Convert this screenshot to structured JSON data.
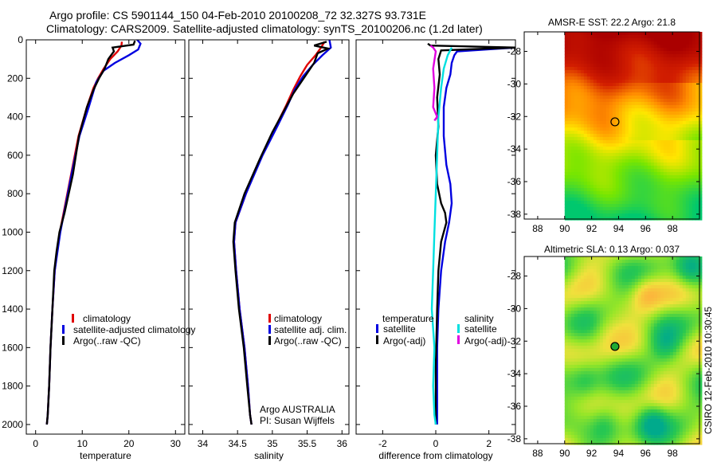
{
  "title": {
    "line1": "Argo profile: CS 5901144_150 04-Feb-2010 20100208_72 32.327S 93.731E",
    "line2": "Climatology: CARS2009. Satellite-adjusted climatology: synTS_20100206.nc (1.2d later)"
  },
  "credit": "CSIRO 12-Feb-2010 10:30:45",
  "chart_data": [
    {
      "id": "temperature",
      "type": "line",
      "xlabel": "temperature",
      "ylabel": "",
      "xlim": [
        -2,
        32
      ],
      "ylim": [
        2050,
        0
      ],
      "xticks": [
        0,
        10,
        20,
        30
      ],
      "yticks": [
        0,
        200,
        400,
        600,
        800,
        1000,
        1200,
        1400,
        1600,
        1800,
        2000
      ],
      "legend": [
        "climatology",
        "satellite-adjusted climatology",
        "Argo(..raw -QC)"
      ],
      "series": [
        {
          "name": "climatology",
          "color": "#e00000",
          "x": [
            18.5,
            18.4,
            17.6,
            16.0,
            14.6,
            13.4,
            12.4,
            11.0,
            9.2,
            7.6,
            6.0,
            5.2,
            4.6,
            4.1,
            3.6,
            3.2,
            2.9,
            2.6,
            2.4
          ],
          "y": [
            10,
            30,
            60,
            100,
            150,
            200,
            250,
            350,
            500,
            700,
            900,
            1000,
            1100,
            1200,
            1400,
            1600,
            1800,
            1950,
            2000
          ]
        },
        {
          "name": "satellite-adjusted climatology",
          "color": "#0000e0",
          "x": [
            21.8,
            22.5,
            22.0,
            20.0,
            17.0,
            14.6,
            13.0,
            11.4,
            9.4,
            7.7,
            6.1,
            5.3,
            4.7,
            4.1,
            3.6,
            3.2,
            2.9,
            2.6,
            2.4
          ],
          "y": [
            0,
            20,
            50,
            80,
            120,
            160,
            220,
            350,
            500,
            700,
            900,
            1000,
            1100,
            1200,
            1400,
            1600,
            1800,
            1950,
            2000
          ]
        },
        {
          "name": "Argo(..raw -QC)",
          "color": "#000000",
          "x": [
            21.3,
            21.0,
            16.5,
            16.8,
            15.6,
            14.8,
            13.6,
            12.4,
            11.0,
            9.3,
            8.0,
            6.2,
            5.1,
            4.5,
            4.0,
            3.6,
            3.2,
            2.9,
            2.6,
            2.4
          ],
          "y": [
            5,
            25,
            40,
            60,
            100,
            150,
            200,
            260,
            350,
            500,
            700,
            900,
            1000,
            1100,
            1200,
            1400,
            1600,
            1800,
            1950,
            2000
          ]
        }
      ]
    },
    {
      "id": "salinity",
      "type": "line",
      "xlabel": "salinity",
      "ylabel": "",
      "xlim": [
        33.8,
        36.1
      ],
      "ylim": [
        2050,
        0
      ],
      "xticks": [
        34,
        34.5,
        35,
        35.5,
        36
      ],
      "yticks": [
        0,
        200,
        400,
        600,
        800,
        1000,
        1200,
        1400,
        1600,
        1800,
        2000
      ],
      "legend": [
        "climatology",
        "satellite adj. clim.",
        "Argo(..raw -QC)"
      ],
      "series": [
        {
          "name": "climatology",
          "color": "#e00000",
          "x": [
            35.75,
            35.7,
            35.62,
            35.5,
            35.4,
            35.3,
            35.2,
            35.05,
            34.85,
            34.62,
            34.47,
            34.45,
            34.48,
            34.53,
            34.6,
            34.65,
            34.68,
            34.7
          ],
          "y": [
            10,
            40,
            80,
            130,
            190,
            260,
            340,
            450,
            600,
            800,
            950,
            1050,
            1200,
            1400,
            1600,
            1800,
            1950,
            2000
          ]
        },
        {
          "name": "satellite adj. clim.",
          "color": "#0000e0",
          "x": [
            35.82,
            35.84,
            35.72,
            35.58,
            35.44,
            35.32,
            35.22,
            35.07,
            34.86,
            34.62,
            34.47,
            34.45,
            34.48,
            34.53,
            34.6,
            34.65,
            34.68,
            34.7
          ],
          "y": [
            0,
            40,
            80,
            130,
            190,
            260,
            340,
            450,
            600,
            800,
            950,
            1050,
            1200,
            1400,
            1600,
            1800,
            1950,
            2000
          ]
        },
        {
          "name": "Argo(..raw -QC)",
          "color": "#000000",
          "x": [
            35.78,
            35.6,
            35.8,
            35.65,
            35.6,
            35.45,
            35.3,
            35.15,
            35.0,
            34.82,
            34.6,
            34.46,
            34.44,
            34.47,
            34.52,
            34.59,
            34.64,
            34.68,
            34.7
          ],
          "y": [
            10,
            30,
            45,
            70,
            120,
            200,
            280,
            380,
            480,
            620,
            800,
            950,
            1050,
            1200,
            1400,
            1600,
            1800,
            1950,
            2000
          ]
        }
      ]
    },
    {
      "id": "difference",
      "type": "line",
      "xlabel": "difference from climatology",
      "ylabel": "",
      "xlim": [
        -3,
        3
      ],
      "ylim": [
        2050,
        0
      ],
      "xticks": [
        -2,
        0,
        2
      ],
      "yticks": [
        0,
        200,
        400,
        600,
        800,
        1000,
        1200,
        1400,
        1600,
        1800,
        2000
      ],
      "legend_headers": [
        "temperature",
        "salinity"
      ],
      "legend": [
        "satellite",
        "Argo(-adj)",
        "satellite",
        "Argo(-adj)"
      ],
      "series": [
        {
          "name": "temperature satellite",
          "color": "#0000e0",
          "x": [
            3.0,
            0.8,
            0.7,
            0.6,
            0.55,
            0.4,
            0.3,
            0.3,
            0.4,
            0.55,
            0.6,
            0.5,
            0.35,
            0.2,
            0.1,
            0.05,
            0.05,
            0.05
          ],
          "y": [
            40,
            60,
            80,
            120,
            180,
            250,
            350,
            500,
            650,
            750,
            850,
            950,
            1050,
            1200,
            1400,
            1600,
            1800,
            2000
          ]
        },
        {
          "name": "temperature Argo(-adj)",
          "color": "#000000",
          "x": [
            -0.3,
            -0.2,
            3.0,
            0.2,
            0.1,
            0.15,
            0.05,
            0.1,
            0.0,
            0.05,
            0.2,
            0.35,
            0.4,
            0.2,
            0.1,
            0.05,
            0.0,
            0.0
          ],
          "y": [
            20,
            30,
            40,
            55,
            100,
            180,
            300,
            450,
            600,
            750,
            850,
            900,
            950,
            1050,
            1200,
            1400,
            1700,
            2000
          ]
        },
        {
          "name": "salinity satellite",
          "color": "#00e0e0",
          "x": [
            0.6,
            0.45,
            0.3,
            0.2,
            0.1,
            0.05,
            0.0,
            -0.05,
            -0.1,
            -0.15,
            -0.05,
            -0.1,
            -0.05,
            0.0
          ],
          "y": [
            40,
            80,
            150,
            250,
            400,
            600,
            800,
            1000,
            1200,
            1400,
            1600,
            1800,
            1950,
            2000
          ]
        },
        {
          "name": "salinity Argo(-adj)",
          "color": "#e000e0",
          "x": [
            -0.2,
            -0.1,
            0.0,
            -0.1,
            -0.05,
            -0.1,
            0.05,
            -0.05
          ],
          "y": [
            30,
            40,
            60,
            150,
            250,
            350,
            400,
            420
          ]
        }
      ]
    },
    {
      "id": "sst-map",
      "type": "heatmap",
      "title": "AMSR-E SST: 22.2 Argo: 21.8",
      "xlim": [
        87,
        100
      ],
      "ylim": [
        -38.3,
        -26.8
      ],
      "xticks": [
        88,
        90,
        92,
        94,
        96,
        98
      ],
      "yticks": [
        -28,
        -30,
        -32,
        -34,
        -36,
        -38
      ],
      "point": {
        "lon": 93.731,
        "lat": -32.327
      }
    },
    {
      "id": "sla-map",
      "type": "heatmap",
      "title": "Altimetric SLA: 0.13 Argo: 0.037",
      "xlim": [
        87,
        100
      ],
      "ylim": [
        -38.3,
        -26.8
      ],
      "xticks": [
        88,
        90,
        92,
        94,
        96,
        98
      ],
      "yticks": [
        -28,
        -30,
        -32,
        -34,
        -36,
        -38
      ],
      "point": {
        "lon": 93.731,
        "lat": -32.327
      }
    }
  ],
  "annotation": {
    "line1": "Argo AUSTRALIA",
    "line2": "PI: Susan Wijffels"
  }
}
